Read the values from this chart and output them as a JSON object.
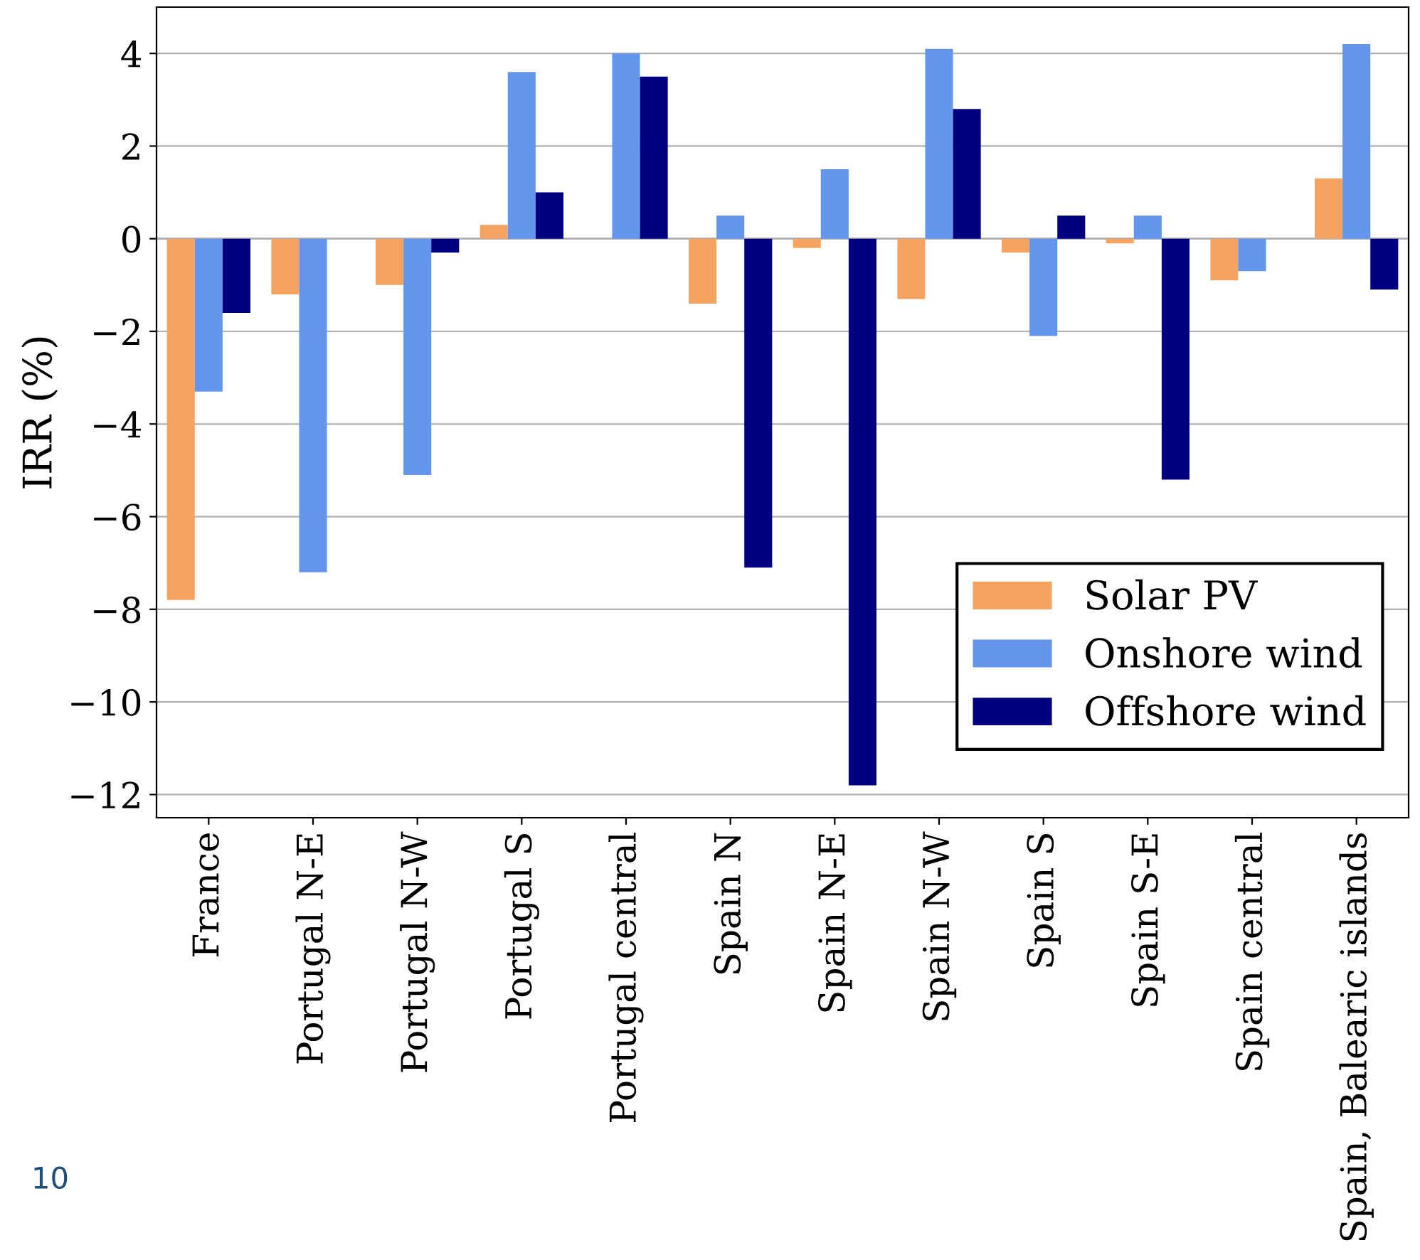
{
  "chart_data": {
    "type": "bar",
    "ylabel": "IRR (%)",
    "categories": [
      "France",
      "Portugal N-E",
      "Portugal N-W",
      "Portugal S",
      "Portugal central",
      "Spain N",
      "Spain N-E",
      "Spain N-W",
      "Spain S",
      "Spain S-E",
      "Spain central",
      "Spain, Balearic islands"
    ],
    "series": [
      {
        "name": "Solar PV",
        "color": "#f4a460",
        "values": [
          -7.8,
          -1.2,
          -1.0,
          0.3,
          0,
          -1.4,
          -0.2,
          -1.3,
          -0.3,
          -0.1,
          -0.9,
          1.3
        ]
      },
      {
        "name": "Onshore wind",
        "color": "#6495ed",
        "values": [
          -3.3,
          -7.2,
          -5.1,
          3.6,
          4.0,
          0.5,
          1.5,
          4.1,
          -2.1,
          0.5,
          -0.7,
          4.2
        ]
      },
      {
        "name": "Offshore wind",
        "color": "#000080",
        "values": [
          -1.6,
          0,
          -0.3,
          1.0,
          3.5,
          -7.1,
          -11.8,
          2.8,
          0.5,
          -5.2,
          0,
          -1.1
        ]
      }
    ],
    "ylim": [
      -12.5,
      5
    ],
    "yticks": [
      -12,
      -10,
      -8,
      -6,
      -4,
      -2,
      0,
      2,
      4
    ],
    "ref_lines": [
      {
        "axis": "y",
        "value": 0,
        "color": "#b0b0b0"
      }
    ],
    "grid": "y",
    "legend": "bottom right",
    "annotations": [
      "10"
    ]
  }
}
